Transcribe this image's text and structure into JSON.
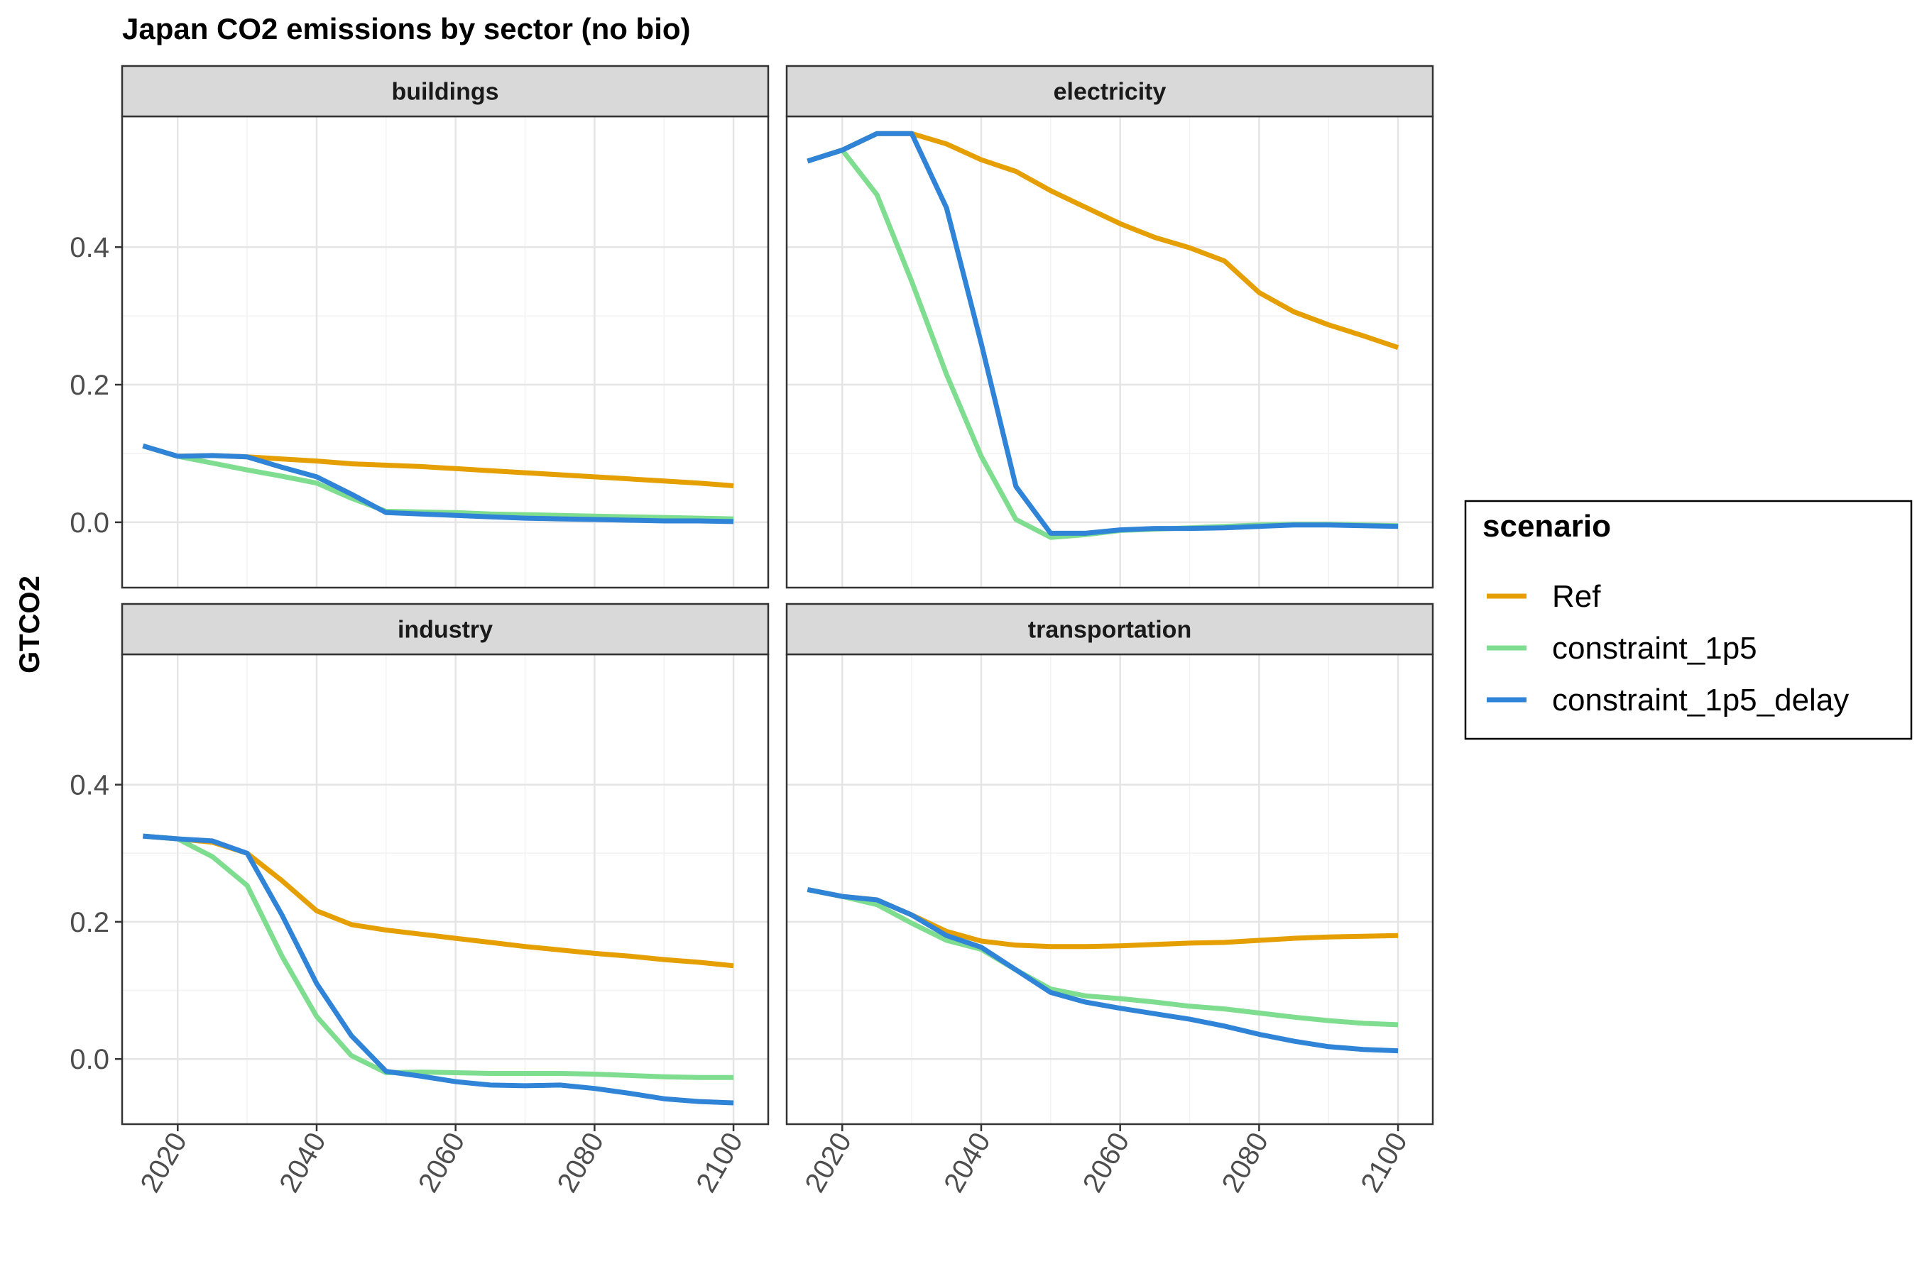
{
  "chart_data": {
    "type": "line",
    "title": "Japan CO2 emissions by sector (no bio)",
    "xlabel": "",
    "ylabel": "GTCO2",
    "xlim": [
      2012,
      2105
    ],
    "ylim": [
      -0.095,
      0.59
    ],
    "x_ticks": [
      2020,
      2040,
      2060,
      2080,
      2100
    ],
    "y_ticks": [
      0.0,
      0.2,
      0.4
    ],
    "y_tick_labels": [
      "0.0",
      "0.2",
      "0.4"
    ],
    "grid": true,
    "facet_layout": "2x2",
    "legend": {
      "title": "scenario",
      "position": "right"
    },
    "colors": {
      "Ref": "#E69F00",
      "constraint_1p5": "#7FDD90",
      "constraint_1p5_delay": "#2F84D8",
      "strip_fill": "#D9D9D9",
      "grid_major": "#E5E5E5",
      "grid_minor": "#F2F2F2"
    },
    "x": [
      2015,
      2020,
      2025,
      2030,
      2035,
      2040,
      2045,
      2050,
      2055,
      2060,
      2065,
      2070,
      2075,
      2080,
      2085,
      2090,
      2095,
      2100
    ],
    "panels": [
      {
        "title": "buildings",
        "series": [
          {
            "name": "Ref",
            "values": [
              0.111,
              0.096,
              0.097,
              0.095,
              0.092,
              0.089,
              0.085,
              0.083,
              0.081,
              0.078,
              0.075,
              0.072,
              0.069,
              0.066,
              0.063,
              0.06,
              0.057,
              0.053
            ]
          },
          {
            "name": "constraint_1p5",
            "values": [
              0.111,
              0.096,
              0.086,
              0.076,
              0.067,
              0.057,
              0.035,
              0.016,
              0.015,
              0.014,
              0.012,
              0.011,
              0.01,
              0.009,
              0.008,
              0.007,
              0.006,
              0.005
            ]
          },
          {
            "name": "constraint_1p5_delay",
            "values": [
              0.111,
              0.096,
              0.097,
              0.095,
              0.08,
              0.066,
              0.041,
              0.014,
              0.012,
              0.01,
              0.008,
              0.006,
              0.005,
              0.004,
              0.003,
              0.002,
              0.002,
              0.001
            ]
          }
        ]
      },
      {
        "title": "electricity",
        "series": [
          {
            "name": "Ref",
            "values": [
              0.525,
              0.541,
              0.565,
              0.565,
              0.55,
              0.527,
              0.51,
              0.482,
              0.458,
              0.434,
              0.414,
              0.399,
              0.38,
              0.334,
              0.306,
              0.287,
              0.271,
              0.254
            ]
          },
          {
            "name": "constraint_1p5",
            "values": [
              0.525,
              0.541,
              0.476,
              0.35,
              0.215,
              0.096,
              0.004,
              -0.022,
              -0.018,
              -0.012,
              -0.01,
              -0.008,
              -0.006,
              -0.004,
              -0.003,
              -0.003,
              -0.004,
              -0.005
            ]
          },
          {
            "name": "constraint_1p5_delay",
            "values": [
              0.525,
              0.541,
              0.565,
              0.565,
              0.457,
              0.26,
              0.052,
              -0.016,
              -0.016,
              -0.011,
              -0.009,
              -0.009,
              -0.008,
              -0.006,
              -0.004,
              -0.004,
              -0.005,
              -0.006
            ]
          }
        ]
      },
      {
        "title": "industry",
        "series": [
          {
            "name": "Ref",
            "values": [
              0.325,
              0.321,
              0.316,
              0.3,
              0.26,
              0.216,
              0.196,
              0.188,
              0.182,
              0.176,
              0.17,
              0.164,
              0.159,
              0.154,
              0.15,
              0.145,
              0.141,
              0.136
            ]
          },
          {
            "name": "constraint_1p5",
            "values": [
              0.325,
              0.321,
              0.295,
              0.253,
              0.15,
              0.062,
              0.005,
              -0.02,
              -0.019,
              -0.02,
              -0.021,
              -0.021,
              -0.021,
              -0.022,
              -0.024,
              -0.026,
              -0.027,
              -0.027
            ]
          },
          {
            "name": "constraint_1p5_delay",
            "values": [
              0.325,
              0.321,
              0.318,
              0.3,
              0.21,
              0.11,
              0.034,
              -0.018,
              -0.025,
              -0.033,
              -0.038,
              -0.039,
              -0.038,
              -0.043,
              -0.05,
              -0.058,
              -0.062,
              -0.064
            ]
          }
        ]
      },
      {
        "title": "transportation",
        "series": [
          {
            "name": "Ref",
            "values": [
              0.247,
              0.237,
              0.232,
              0.21,
              0.186,
              0.172,
              0.166,
              0.164,
              0.164,
              0.165,
              0.167,
              0.169,
              0.17,
              0.173,
              0.176,
              0.178,
              0.179,
              0.18
            ]
          },
          {
            "name": "constraint_1p5",
            "values": [
              0.247,
              0.237,
              0.225,
              0.198,
              0.173,
              0.16,
              0.13,
              0.102,
              0.092,
              0.088,
              0.083,
              0.077,
              0.073,
              0.067,
              0.061,
              0.056,
              0.052,
              0.05
            ]
          },
          {
            "name": "constraint_1p5_delay",
            "values": [
              0.247,
              0.237,
              0.232,
              0.21,
              0.18,
              0.163,
              0.13,
              0.097,
              0.083,
              0.074,
              0.066,
              0.058,
              0.048,
              0.036,
              0.026,
              0.018,
              0.014,
              0.012
            ]
          }
        ]
      }
    ]
  }
}
